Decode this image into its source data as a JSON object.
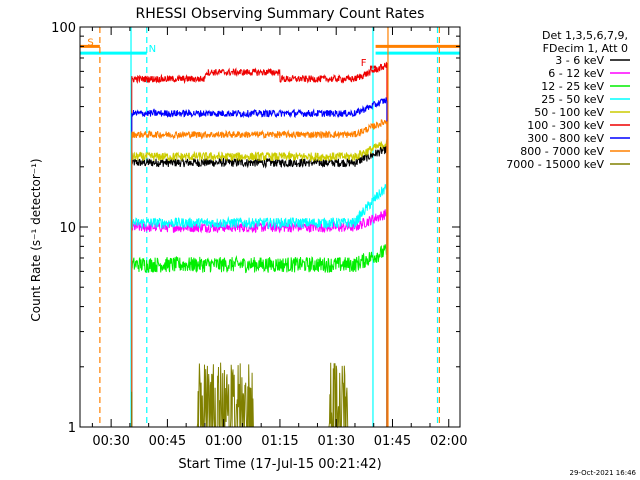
{
  "chart_data": {
    "type": "line",
    "title": "RHESSI Observing Summary Count Rates",
    "xlabel": "Start Time (17-Jul-15 00:21:42)",
    "ylabel": "Count Rate (s⁻¹ detector⁻¹)",
    "yscale": "log",
    "ylim": [
      1,
      100
    ],
    "xlim_minutes": [
      21.7,
      123.0
    ],
    "x_ticks": [
      {
        "t": 30,
        "label": "00:30"
      },
      {
        "t": 45,
        "label": "00:45"
      },
      {
        "t": 60,
        "label": "01:00"
      },
      {
        "t": 75,
        "label": "01:15"
      },
      {
        "t": 90,
        "label": "01:30"
      },
      {
        "t": 105,
        "label": "01:45"
      },
      {
        "t": 120,
        "label": "02:00"
      }
    ],
    "y_ticks": [
      {
        "v": 1,
        "label": "1"
      },
      {
        "v": 10,
        "label": "10"
      },
      {
        "v": 100,
        "label": "100"
      }
    ],
    "timestamp": "29-Oct-2021 16:46",
    "legend_position": "top-right",
    "legend_header": [
      "Det 1,3,5,6,7,9,",
      "FDecim 1, Att 0"
    ],
    "series": [
      {
        "name": "3 - 6 keV",
        "color": "#000000",
        "level": 21,
        "noise": 0.05
      },
      {
        "name": "6 - 12 keV",
        "color": "#ff00ff",
        "level": 10,
        "noise": 0.06
      },
      {
        "name": "12 - 25 keV",
        "color": "#00ee00",
        "level": 6.5,
        "noise": 0.09
      },
      {
        "name": "25 - 50 keV",
        "color": "#00ffff",
        "level": 10.5,
        "noise": 0.06
      },
      {
        "name": "50 - 100 keV",
        "color": "#cccc00",
        "level": 22.5,
        "noise": 0.05
      },
      {
        "name": "100 - 300 keV",
        "color": "#ee0000",
        "level": 55,
        "noise": 0.04
      },
      {
        "name": "300 - 800 keV",
        "color": "#0000ff",
        "level": 37,
        "noise": 0.04
      },
      {
        "name": "800 - 7000 keV",
        "color": "#ff8000",
        "level": 29,
        "noise": 0.04
      },
      {
        "name": "7000 - 15000 keV",
        "color": "#808000",
        "level": 1.5,
        "noise": 0.3
      }
    ],
    "data_start": 35.5,
    "data_end": 103.5,
    "flags": [
      {
        "label": "S",
        "color": "#ff8000",
        "x_start": 21.7,
        "x_end": 27.0,
        "y": 80,
        "marker_x": 24.5
      },
      {
        "label": "N",
        "color": "#00ffff",
        "x_start": 21.7,
        "x_end": 39.5,
        "y": 74,
        "marker_x": 41.0
      },
      {
        "label": "F",
        "color": "#ee0000",
        "x_start": 99.0,
        "x_end": 100.5,
        "y": 63,
        "marker_x": 97.3
      }
    ],
    "vlines": [
      {
        "t": 27.0,
        "color": "#ff8000",
        "style": "dashed"
      },
      {
        "t": 35.3,
        "color": "#00ffff",
        "style": "solid"
      },
      {
        "t": 39.5,
        "color": "#00ffff",
        "style": "dashed"
      },
      {
        "t": 99.8,
        "color": "#00ffff",
        "style": "solid"
      },
      {
        "t": 103.8,
        "color": "#ff8000",
        "style": "solid"
      },
      {
        "t": 117.5,
        "color": "#ff8000",
        "style": "dashed"
      },
      {
        "t": 117.0,
        "color": "#00ffff",
        "style": "dashed"
      }
    ]
  }
}
